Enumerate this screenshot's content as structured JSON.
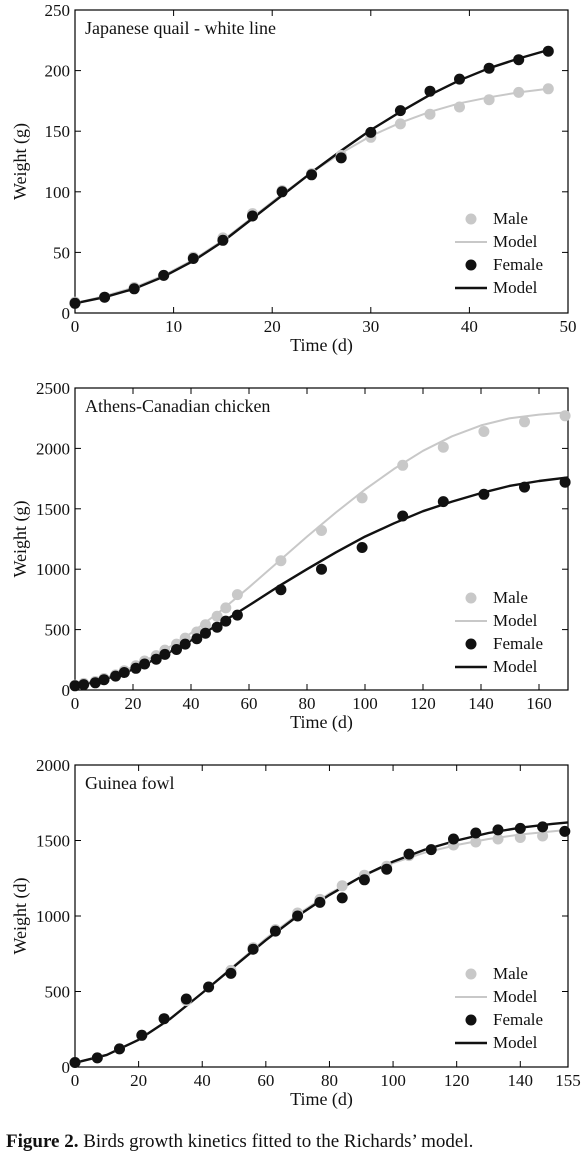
{
  "caption": {
    "label": "Figure 2.",
    "text": " Birds growth kinetics fitted to the Richards’ model."
  },
  "colors": {
    "male": "#c8c8c8",
    "female": "#111111",
    "male_model": "#c8c8c8",
    "female_model": "#111111"
  },
  "chart_data": [
    {
      "type": "scatter",
      "title": "Japanese quail - white line",
      "xlabel": "Time (d)",
      "ylabel": "Weight (g)",
      "xlim": [
        0,
        50
      ],
      "ylim": [
        0,
        250
      ],
      "xticks": [
        0,
        10,
        20,
        30,
        40,
        50
      ],
      "yticks": [
        0,
        50,
        100,
        150,
        200,
        250
      ],
      "xtick_labels": [
        "0",
        "10",
        "20",
        "30",
        "40",
        "50"
      ],
      "ytick_labels": [
        "0",
        "50",
        "100",
        "150",
        "200",
        "250"
      ],
      "grid": false,
      "legend_position": "bottom-right",
      "legend": [
        "Male",
        "Model",
        "Female",
        "Model"
      ],
      "series": [
        {
          "name": "Male",
          "kind": "points",
          "x": [
            0,
            3,
            6,
            9,
            12,
            15,
            18,
            21,
            24,
            27,
            30,
            33,
            36,
            39,
            42,
            45,
            48
          ],
          "y": [
            9,
            13,
            21,
            31,
            46,
            62,
            82,
            101,
            115,
            130,
            145,
            156,
            164,
            170,
            176,
            182,
            185
          ]
        },
        {
          "name": "Model",
          "kind": "line",
          "of": "Male",
          "x": [
            0,
            3,
            6,
            9,
            12,
            15,
            18,
            21,
            24,
            27,
            30,
            33,
            36,
            39,
            42,
            45,
            48
          ],
          "y": [
            8,
            14,
            21,
            31,
            44,
            60,
            79,
            98,
            116,
            132,
            146,
            157,
            166,
            173,
            178,
            182,
            185
          ]
        },
        {
          "name": "Female",
          "kind": "points",
          "x": [
            0,
            3,
            6,
            9,
            12,
            15,
            18,
            21,
            24,
            27,
            30,
            33,
            36,
            39,
            42,
            45,
            48
          ],
          "y": [
            8,
            13,
            20,
            31,
            45,
            60,
            80,
            100,
            114,
            128,
            149,
            167,
            183,
            193,
            202,
            209,
            216
          ]
        },
        {
          "name": "Model",
          "kind": "line",
          "of": "Female",
          "x": [
            0,
            3,
            6,
            9,
            12,
            15,
            18,
            21,
            24,
            27,
            30,
            33,
            36,
            39,
            42,
            45,
            48
          ],
          "y": [
            8,
            13,
            20,
            30,
            43,
            59,
            78,
            97,
            116,
            134,
            151,
            166,
            180,
            192,
            202,
            210,
            217
          ]
        }
      ]
    },
    {
      "type": "scatter",
      "title": "Athens-Canadian chicken",
      "xlabel": "Time (d)",
      "ylabel": "Weight (g)",
      "xlim": [
        0,
        170
      ],
      "ylim": [
        0,
        2500
      ],
      "xticks": [
        0,
        20,
        40,
        60,
        80,
        100,
        120,
        140,
        160
      ],
      "yticks": [
        0,
        500,
        1000,
        1500,
        2000,
        2500
      ],
      "xtick_labels": [
        "0",
        "20",
        "40",
        "60",
        "80",
        "100",
        "120",
        "140",
        "160"
      ],
      "ytick_labels": [
        "0",
        "500",
        "1000",
        "1500",
        "2000",
        "2500"
      ],
      "grid": false,
      "legend_position": "bottom-right",
      "legend": [
        "Male",
        "Model",
        "Female",
        "Model"
      ],
      "series": [
        {
          "name": "Male",
          "kind": "points",
          "x": [
            0,
            3,
            7,
            10,
            14,
            17,
            21,
            24,
            28,
            31,
            35,
            38,
            42,
            45,
            49,
            52,
            56,
            71,
            85,
            99,
            113,
            127,
            141,
            155,
            169
          ],
          "y": [
            40,
            55,
            70,
            95,
            125,
            160,
            200,
            240,
            285,
            330,
            380,
            430,
            480,
            540,
            610,
            680,
            790,
            1070,
            1320,
            1590,
            1860,
            2010,
            2140,
            2220,
            2270
          ]
        },
        {
          "name": "Model",
          "kind": "line",
          "of": "Male",
          "x": [
            0,
            10,
            20,
            30,
            40,
            50,
            60,
            70,
            80,
            90,
            100,
            110,
            120,
            130,
            140,
            150,
            160,
            170
          ],
          "y": [
            35,
            95,
            190,
            315,
            470,
            650,
            850,
            1060,
            1270,
            1470,
            1660,
            1830,
            1980,
            2100,
            2190,
            2250,
            2280,
            2300
          ]
        },
        {
          "name": "Female",
          "kind": "points",
          "x": [
            0,
            3,
            7,
            10,
            14,
            17,
            21,
            24,
            28,
            31,
            35,
            38,
            42,
            45,
            49,
            52,
            56,
            71,
            85,
            99,
            113,
            127,
            141,
            155,
            169
          ],
          "y": [
            35,
            45,
            60,
            85,
            115,
            145,
            180,
            215,
            255,
            295,
            335,
            380,
            425,
            470,
            520,
            570,
            620,
            830,
            1000,
            1180,
            1440,
            1560,
            1620,
            1680,
            1720
          ]
        },
        {
          "name": "Model",
          "kind": "line",
          "of": "Female",
          "x": [
            0,
            10,
            20,
            30,
            40,
            50,
            60,
            70,
            80,
            90,
            100,
            110,
            120,
            130,
            140,
            150,
            160,
            170
          ],
          "y": [
            30,
            85,
            170,
            280,
            410,
            550,
            700,
            855,
            1000,
            1140,
            1270,
            1380,
            1480,
            1560,
            1630,
            1690,
            1730,
            1760
          ]
        }
      ]
    },
    {
      "type": "scatter",
      "title": "Guinea fowl",
      "xlabel": "Time (d)",
      "ylabel": "Weight (d)",
      "xlim": [
        0,
        155
      ],
      "ylim": [
        0,
        2000
      ],
      "xticks": [
        0,
        20,
        40,
        60,
        80,
        100,
        120,
        140,
        155
      ],
      "yticks": [
        0,
        500,
        1000,
        1500,
        2000
      ],
      "xtick_labels": [
        "0",
        "20",
        "40",
        "60",
        "80",
        "100",
        "120",
        "140",
        "155"
      ],
      "ytick_labels": [
        "0",
        "500",
        "1000",
        "1500",
        "2000"
      ],
      "grid": false,
      "legend_position": "bottom-right",
      "legend": [
        "Male",
        "Model",
        "Female",
        "Model"
      ],
      "series": [
        {
          "name": "Male",
          "kind": "points",
          "x": [
            0,
            7,
            14,
            21,
            28,
            35,
            42,
            49,
            56,
            63,
            70,
            77,
            84,
            91,
            98,
            105,
            112,
            119,
            126,
            133,
            140,
            147,
            154
          ],
          "y": [
            30,
            60,
            120,
            210,
            320,
            440,
            530,
            640,
            790,
            910,
            1020,
            1110,
            1200,
            1270,
            1330,
            1400,
            1440,
            1470,
            1490,
            1510,
            1520,
            1530,
            1560
          ]
        },
        {
          "name": "Model",
          "kind": "line",
          "of": "Male",
          "x": [
            0,
            10,
            20,
            30,
            40,
            50,
            60,
            70,
            80,
            90,
            100,
            110,
            120,
            130,
            140,
            150,
            155
          ],
          "y": [
            30,
            80,
            180,
            320,
            490,
            670,
            850,
            1010,
            1150,
            1260,
            1350,
            1420,
            1470,
            1510,
            1540,
            1560,
            1570
          ]
        },
        {
          "name": "Female",
          "kind": "points",
          "x": [
            0,
            7,
            14,
            21,
            28,
            35,
            42,
            49,
            56,
            63,
            70,
            77,
            84,
            91,
            98,
            105,
            112,
            119,
            126,
            133,
            140,
            147,
            154
          ],
          "y": [
            30,
            60,
            120,
            210,
            320,
            450,
            530,
            620,
            780,
            900,
            1000,
            1090,
            1120,
            1240,
            1310,
            1410,
            1440,
            1510,
            1550,
            1570,
            1580,
            1590,
            1560
          ]
        },
        {
          "name": "Model",
          "kind": "line",
          "of": "Female",
          "x": [
            0,
            10,
            20,
            30,
            40,
            50,
            60,
            70,
            80,
            90,
            100,
            110,
            120,
            130,
            140,
            150,
            155
          ],
          "y": [
            28,
            80,
            180,
            320,
            490,
            665,
            840,
            1000,
            1140,
            1260,
            1360,
            1440,
            1500,
            1550,
            1585,
            1610,
            1620
          ]
        }
      ]
    }
  ]
}
